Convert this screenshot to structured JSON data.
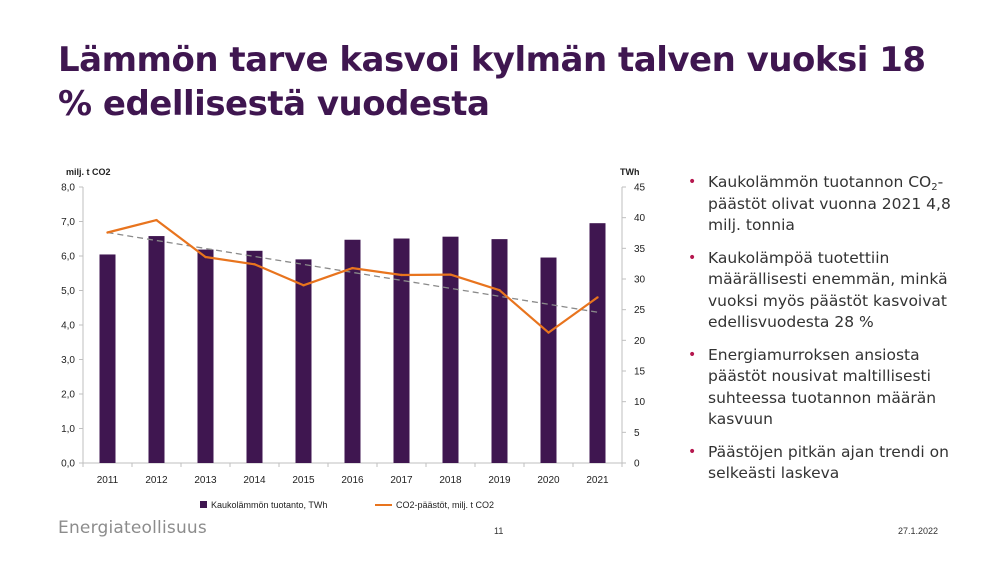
{
  "slide": {
    "title": "Lämmön tarve kasvoi kylmän talven vuoksi 18 % edellisestä vuodesta",
    "logo": "Energiateollisuus",
    "page_number": "11",
    "date": "27.1.2022"
  },
  "bullets": [
    {
      "parts": [
        "Kaukolämmön tuotannon CO",
        "2",
        "-päästöt olivat vuonna 2021 4,8 milj. tonnia"
      ]
    },
    {
      "parts": [
        "Kaukolämpöä tuotettiin määrällisesti enemmän, minkä vuoksi myös päästöt kasvoivat edellisvuodesta 28 %"
      ]
    },
    {
      "parts": [
        "Energiamurroksen ansiosta päästöt nousivat maltillisesti suhteessa tuotannon määrän kasvuun"
      ]
    },
    {
      "parts": [
        "Päästöjen pitkän ajan trendi on selkeästi laskeva"
      ]
    }
  ],
  "chart_data": {
    "type": "bar",
    "categories": [
      "2011",
      "2012",
      "2013",
      "2014",
      "2015",
      "2016",
      "2017",
      "2018",
      "2019",
      "2020",
      "2021"
    ],
    "series": [
      {
        "name": "Kaukolämmön tuotanto, TWh",
        "type": "bar",
        "axis": "right",
        "values": [
          34.0,
          37.0,
          34.8,
          34.6,
          33.2,
          36.4,
          36.6,
          36.9,
          36.5,
          33.5,
          39.1
        ]
      },
      {
        "name": "CO2-päästöt, milj. t CO2",
        "type": "line",
        "axis": "left",
        "values": [
          6.68,
          7.04,
          5.97,
          5.76,
          5.15,
          5.65,
          5.45,
          5.46,
          5.01,
          3.78,
          4.8
        ]
      }
    ],
    "trendline": {
      "style": "dashed",
      "series": "CO2-päästöt, milj. t CO2",
      "values": [
        6.68,
        4.37
      ]
    },
    "y_left": {
      "label": "milj. t CO2",
      "range": [
        0,
        8
      ],
      "ticks": [
        "0,0",
        "1,0",
        "2,0",
        "3,0",
        "4,0",
        "5,0",
        "6,0",
        "7,0",
        "8,0"
      ]
    },
    "y_right": {
      "label": "TWh",
      "range": [
        0,
        45
      ],
      "ticks": [
        "0",
        "5",
        "10",
        "15",
        "20",
        "25",
        "30",
        "35",
        "40",
        "45"
      ]
    },
    "legend": "bottom",
    "grid": false,
    "colors": {
      "bar": "#3f1650",
      "line": "#e8741e",
      "trend": "#8a8a8a",
      "axis": "#bfbfbf",
      "text": "#222222"
    }
  }
}
